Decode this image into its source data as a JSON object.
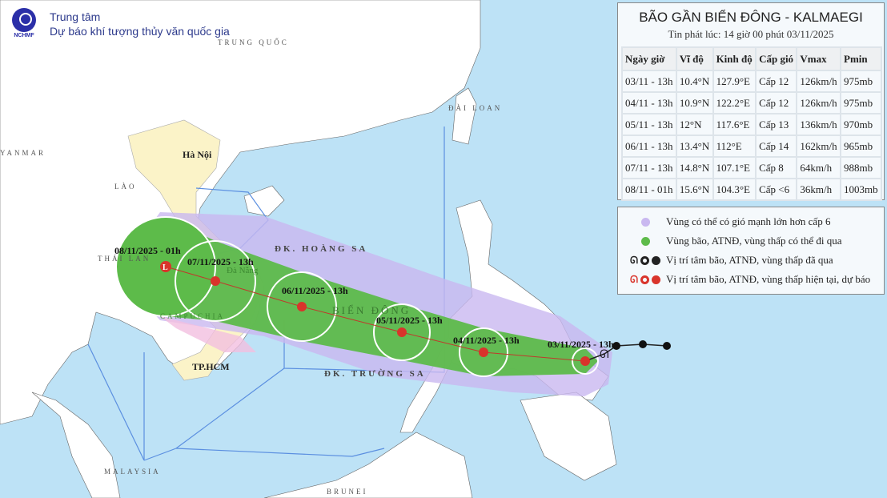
{
  "header": {
    "org_line1": "Trung tâm",
    "org_line2": "Dự báo khí tượng thủy văn quốc gia",
    "logo_text": "NCHMF"
  },
  "map_labels": {
    "china": "TRUNG QUỐC",
    "taiwan": "ĐÀI LOAN",
    "myanmar": "YANMAR",
    "laos": "LÀO",
    "thailand": "THÁI LAN",
    "cambodia": "CAMPUCHIA",
    "hanoi": "Hà Nội",
    "danang": "Đà Nẵng",
    "hcm": "TP.HCM",
    "paracel": "ĐK. HOÀNG SA",
    "spratly": "ĐK. TRƯỜNG SA",
    "east_sea": "BIỂN ĐÔNG",
    "malaysia": "MALAYSIA",
    "brunei": "BRUNEI"
  },
  "track_labels": [
    "03/11/2025 - 13h",
    "04/11/2025 - 13h",
    "05/11/2025 - 13h",
    "06/11/2025 - 13h",
    "07/11/2025 - 13h",
    "08/11/2025 - 01h"
  ],
  "panel": {
    "title": "BÃO GẦN BIỂN ĐÔNG - KALMAEGI",
    "issued": "Tin phát lúc: 14 giờ 00 phút 03/11/2025",
    "columns": [
      "Ngày giờ",
      "Vĩ độ",
      "Kinh độ",
      "Cấp gió",
      "Vmax",
      "Pmin"
    ],
    "rows": [
      [
        "03/11 - 13h",
        "10.4°N",
        "127.9°E",
        "Cấp 12",
        "126km/h",
        "975mb"
      ],
      [
        "04/11 - 13h",
        "10.9°N",
        "122.2°E",
        "Cấp 12",
        "126km/h",
        "975mb"
      ],
      [
        "05/11 - 13h",
        "12°N",
        "117.6°E",
        "Cấp 13",
        "136km/h",
        "970mb"
      ],
      [
        "06/11 - 13h",
        "13.4°N",
        "112°E",
        "Cấp 14",
        "162km/h",
        "965mb"
      ],
      [
        "07/11 - 13h",
        "14.8°N",
        "107.1°E",
        "Cấp 8",
        "64km/h",
        "988mb"
      ],
      [
        "08/11 - 01h",
        "15.6°N",
        "104.3°E",
        "Cấp <6",
        "36km/h",
        "1003mb"
      ]
    ]
  },
  "legend": [
    {
      "label": "Vùng có thể có gió mạnh lớn hơn cấp 6",
      "color": "#c9b8f0"
    },
    {
      "label": "Vùng bão, ATNĐ, vùng thấp có thể đi qua",
      "color": "#5dbb4a"
    },
    {
      "label": "Vị trí tâm bão, ATNĐ, vùng thấp đã qua",
      "color": "#222222",
      "icons": [
        "storm-icon",
        "depression-icon",
        "low-icon"
      ]
    },
    {
      "label": "Vị trí tâm bão, ATNĐ, vùng thấp hiện tại, dự báo",
      "color": "#d9342b",
      "icons": [
        "storm-icon",
        "depression-icon",
        "low-icon"
      ]
    }
  ],
  "colors": {
    "sea": "#bde2f6",
    "land": "#ffffff",
    "vietnam": "#fbf3c8",
    "forecast_cone": "#5dbb4a",
    "wind_zone": "#c9b8f0",
    "current": "#d9342b"
  }
}
